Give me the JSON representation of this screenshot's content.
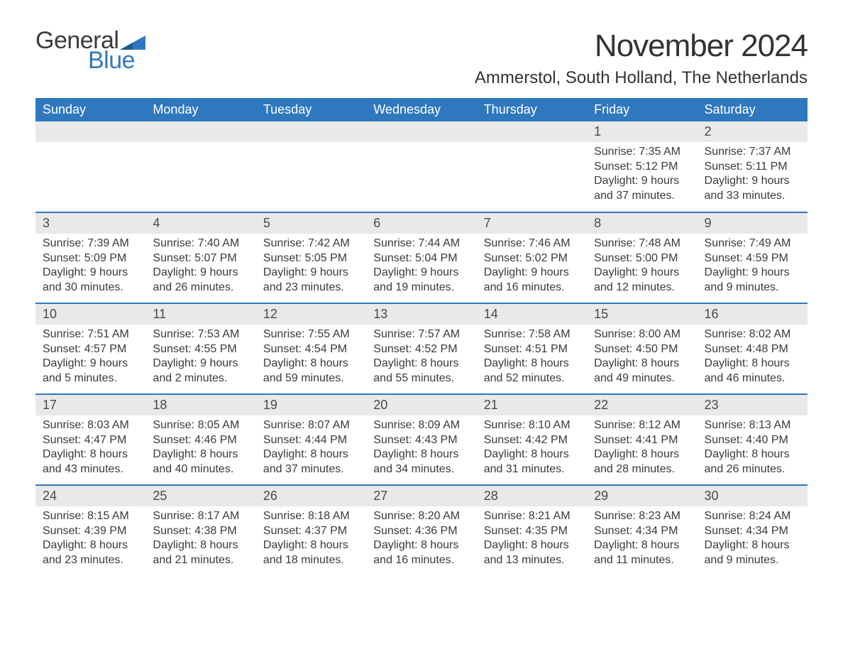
{
  "brand": {
    "word1": "General",
    "word2": "Blue",
    "text_color": "#3b3b3b",
    "accent_color": "#2f78bf"
  },
  "title": "November 2024",
  "location": "Ammerstol, South Holland, The Netherlands",
  "colors": {
    "header_bg": "#2f78bf",
    "header_text": "#ffffff",
    "daynum_bg": "#e9e9e9",
    "body_text": "#3a3a3a",
    "page_bg": "#ffffff",
    "row_separator": "#2f78bf"
  },
  "typography": {
    "title_fontsize": 44,
    "location_fontsize": 24,
    "weekday_fontsize": 18,
    "daynum_fontsize": 18,
    "body_fontsize": 16
  },
  "weekdays": [
    "Sunday",
    "Monday",
    "Tuesday",
    "Wednesday",
    "Thursday",
    "Friday",
    "Saturday"
  ],
  "weeks": [
    [
      {
        "day": "",
        "lines": []
      },
      {
        "day": "",
        "lines": []
      },
      {
        "day": "",
        "lines": []
      },
      {
        "day": "",
        "lines": []
      },
      {
        "day": "",
        "lines": []
      },
      {
        "day": "1",
        "lines": [
          "Sunrise: 7:35 AM",
          "Sunset: 5:12 PM",
          "Daylight: 9 hours and 37 minutes."
        ]
      },
      {
        "day": "2",
        "lines": [
          "Sunrise: 7:37 AM",
          "Sunset: 5:11 PM",
          "Daylight: 9 hours and 33 minutes."
        ]
      }
    ],
    [
      {
        "day": "3",
        "lines": [
          "Sunrise: 7:39 AM",
          "Sunset: 5:09 PM",
          "Daylight: 9 hours and 30 minutes."
        ]
      },
      {
        "day": "4",
        "lines": [
          "Sunrise: 7:40 AM",
          "Sunset: 5:07 PM",
          "Daylight: 9 hours and 26 minutes."
        ]
      },
      {
        "day": "5",
        "lines": [
          "Sunrise: 7:42 AM",
          "Sunset: 5:05 PM",
          "Daylight: 9 hours and 23 minutes."
        ]
      },
      {
        "day": "6",
        "lines": [
          "Sunrise: 7:44 AM",
          "Sunset: 5:04 PM",
          "Daylight: 9 hours and 19 minutes."
        ]
      },
      {
        "day": "7",
        "lines": [
          "Sunrise: 7:46 AM",
          "Sunset: 5:02 PM",
          "Daylight: 9 hours and 16 minutes."
        ]
      },
      {
        "day": "8",
        "lines": [
          "Sunrise: 7:48 AM",
          "Sunset: 5:00 PM",
          "Daylight: 9 hours and 12 minutes."
        ]
      },
      {
        "day": "9",
        "lines": [
          "Sunrise: 7:49 AM",
          "Sunset: 4:59 PM",
          "Daylight: 9 hours and 9 minutes."
        ]
      }
    ],
    [
      {
        "day": "10",
        "lines": [
          "Sunrise: 7:51 AM",
          "Sunset: 4:57 PM",
          "Daylight: 9 hours and 5 minutes."
        ]
      },
      {
        "day": "11",
        "lines": [
          "Sunrise: 7:53 AM",
          "Sunset: 4:55 PM",
          "Daylight: 9 hours and 2 minutes."
        ]
      },
      {
        "day": "12",
        "lines": [
          "Sunrise: 7:55 AM",
          "Sunset: 4:54 PM",
          "Daylight: 8 hours and 59 minutes."
        ]
      },
      {
        "day": "13",
        "lines": [
          "Sunrise: 7:57 AM",
          "Sunset: 4:52 PM",
          "Daylight: 8 hours and 55 minutes."
        ]
      },
      {
        "day": "14",
        "lines": [
          "Sunrise: 7:58 AM",
          "Sunset: 4:51 PM",
          "Daylight: 8 hours and 52 minutes."
        ]
      },
      {
        "day": "15",
        "lines": [
          "Sunrise: 8:00 AM",
          "Sunset: 4:50 PM",
          "Daylight: 8 hours and 49 minutes."
        ]
      },
      {
        "day": "16",
        "lines": [
          "Sunrise: 8:02 AM",
          "Sunset: 4:48 PM",
          "Daylight: 8 hours and 46 minutes."
        ]
      }
    ],
    [
      {
        "day": "17",
        "lines": [
          "Sunrise: 8:03 AM",
          "Sunset: 4:47 PM",
          "Daylight: 8 hours and 43 minutes."
        ]
      },
      {
        "day": "18",
        "lines": [
          "Sunrise: 8:05 AM",
          "Sunset: 4:46 PM",
          "Daylight: 8 hours and 40 minutes."
        ]
      },
      {
        "day": "19",
        "lines": [
          "Sunrise: 8:07 AM",
          "Sunset: 4:44 PM",
          "Daylight: 8 hours and 37 minutes."
        ]
      },
      {
        "day": "20",
        "lines": [
          "Sunrise: 8:09 AM",
          "Sunset: 4:43 PM",
          "Daylight: 8 hours and 34 minutes."
        ]
      },
      {
        "day": "21",
        "lines": [
          "Sunrise: 8:10 AM",
          "Sunset: 4:42 PM",
          "Daylight: 8 hours and 31 minutes."
        ]
      },
      {
        "day": "22",
        "lines": [
          "Sunrise: 8:12 AM",
          "Sunset: 4:41 PM",
          "Daylight: 8 hours and 28 minutes."
        ]
      },
      {
        "day": "23",
        "lines": [
          "Sunrise: 8:13 AM",
          "Sunset: 4:40 PM",
          "Daylight: 8 hours and 26 minutes."
        ]
      }
    ],
    [
      {
        "day": "24",
        "lines": [
          "Sunrise: 8:15 AM",
          "Sunset: 4:39 PM",
          "Daylight: 8 hours and 23 minutes."
        ]
      },
      {
        "day": "25",
        "lines": [
          "Sunrise: 8:17 AM",
          "Sunset: 4:38 PM",
          "Daylight: 8 hours and 21 minutes."
        ]
      },
      {
        "day": "26",
        "lines": [
          "Sunrise: 8:18 AM",
          "Sunset: 4:37 PM",
          "Daylight: 8 hours and 18 minutes."
        ]
      },
      {
        "day": "27",
        "lines": [
          "Sunrise: 8:20 AM",
          "Sunset: 4:36 PM",
          "Daylight: 8 hours and 16 minutes."
        ]
      },
      {
        "day": "28",
        "lines": [
          "Sunrise: 8:21 AM",
          "Sunset: 4:35 PM",
          "Daylight: 8 hours and 13 minutes."
        ]
      },
      {
        "day": "29",
        "lines": [
          "Sunrise: 8:23 AM",
          "Sunset: 4:34 PM",
          "Daylight: 8 hours and 11 minutes."
        ]
      },
      {
        "day": "30",
        "lines": [
          "Sunrise: 8:24 AM",
          "Sunset: 4:34 PM",
          "Daylight: 8 hours and 9 minutes."
        ]
      }
    ]
  ]
}
